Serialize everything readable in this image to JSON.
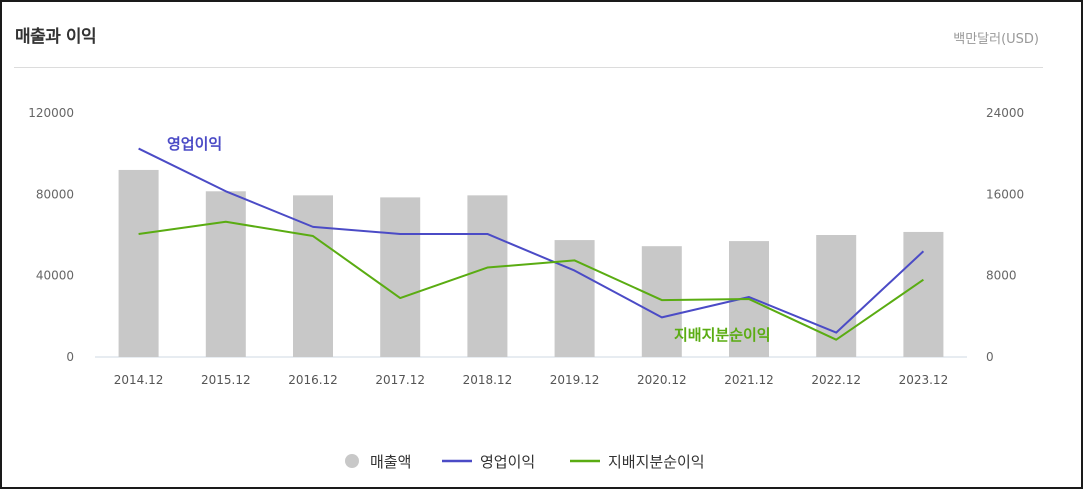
{
  "header": {
    "title": "매출과 이익",
    "unit": "백만달러(USD)"
  },
  "colors": {
    "revenue_bar": "#c8c8c8",
    "operating_profit": "#4b4bc6",
    "net_profit": "#5aac12"
  },
  "chart_data": {
    "type": "bar",
    "categories": [
      "2014.12",
      "2015.12",
      "2016.12",
      "2017.12",
      "2018.12",
      "2019.12",
      "2020.12",
      "2021.12",
      "2022.12",
      "2023.12"
    ],
    "series": [
      {
        "name": "매출액",
        "type": "bar",
        "axis": "left",
        "values": [
          92000,
          81500,
          79500,
          78500,
          79500,
          57500,
          54500,
          57000,
          60000,
          61500
        ]
      },
      {
        "name": "영업이익",
        "type": "line",
        "axis": "right",
        "values": [
          20500,
          16300,
          12800,
          12100,
          12100,
          8500,
          3900,
          5900,
          2400,
          10400
        ]
      },
      {
        "name": "지배지분순이익",
        "type": "line",
        "axis": "right",
        "values": [
          12100,
          13300,
          11900,
          5800,
          8800,
          9500,
          5600,
          5700,
          1700,
          7600
        ]
      }
    ],
    "left_axis": {
      "ylim": [
        0,
        120000
      ],
      "ticks": [
        "0",
        "40000",
        "80000",
        "120000"
      ]
    },
    "right_axis": {
      "ylim": [
        0,
        24000
      ],
      "ticks": [
        "0",
        "8000",
        "16000",
        "24000"
      ]
    },
    "annotations": [
      {
        "text": "영업이익",
        "series": "영업이익"
      },
      {
        "text": "지배지분순이익",
        "series": "지배지분순이익"
      }
    ],
    "legend": {
      "position": "bottom",
      "items": [
        {
          "label": "매출액",
          "marker": "circle"
        },
        {
          "label": "영업이익",
          "marker": "line"
        },
        {
          "label": "지배지분순이익",
          "marker": "line"
        }
      ]
    }
  }
}
